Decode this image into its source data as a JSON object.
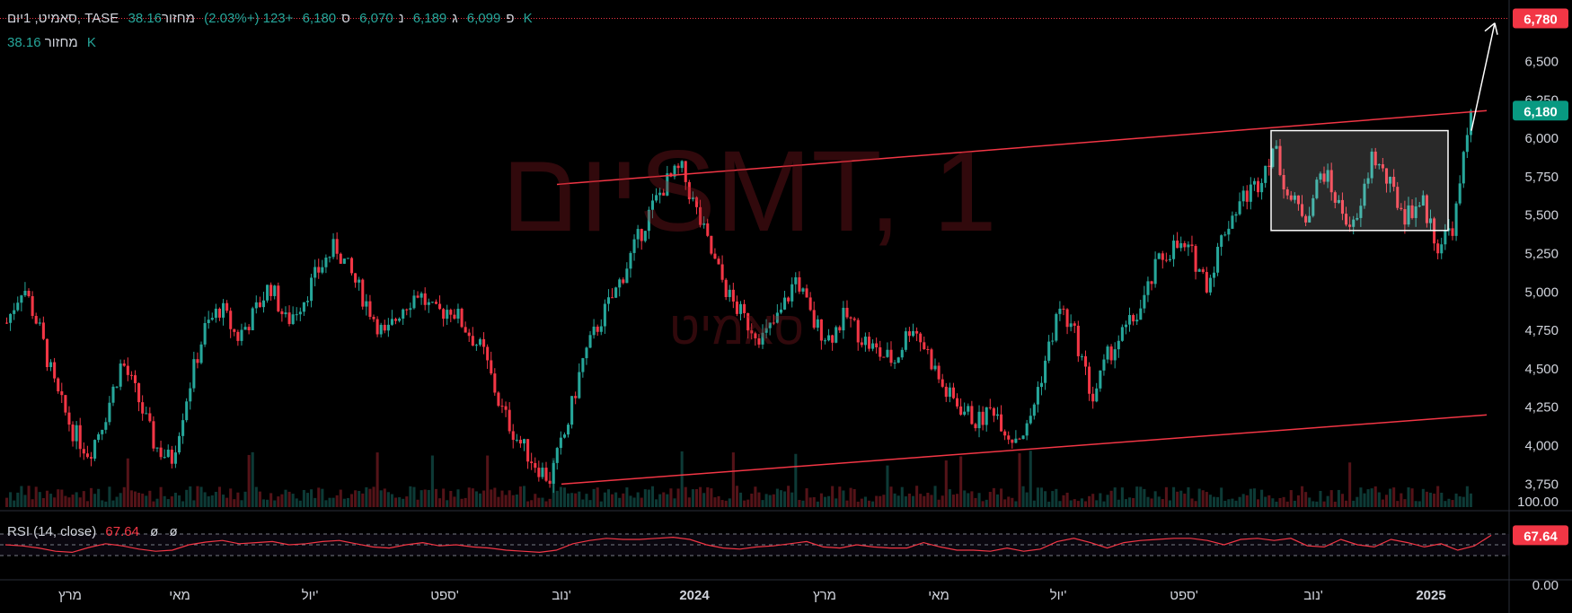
{
  "header": {
    "symbol_title": "סאמיט, 1יום, TASE",
    "ohlc": {
      "o_label": "פ",
      "o": "6,099",
      "h_label": "ג",
      "h": "6,189",
      "l_label": "נ",
      "l": "6,070",
      "c_label": "ס",
      "c": "6,180"
    },
    "change": "+123 (+2.03%)",
    "volume_label": "מחזור",
    "volume_value": "38.16 K"
  },
  "watermark": {
    "line1": "SMT, 1יום",
    "line2": "סאמיט"
  },
  "rsi": {
    "label": "RSI (14, close)",
    "value": "67.64",
    "extra1": "ø",
    "extra2": "ø",
    "axis_top": "100.00",
    "axis_bottom": "0.00",
    "badge": "67.64"
  },
  "colors": {
    "up": "#26a69a",
    "down": "#f23645",
    "line": "#f23645",
    "badge_current": "#089981",
    "badge_target": "#f23645",
    "rsi_line": "#f23645",
    "rsi_band": "#7e57c2"
  },
  "chart_data": {
    "type": "candlestick",
    "ylim": [
      3600,
      6900
    ],
    "y_ticks": [
      "6,500",
      "6,250",
      "6,000",
      "5,750",
      "5,500",
      "5,250",
      "5,000",
      "4,750",
      "4,500",
      "4,250",
      "4,000",
      "3,750"
    ],
    "y_tick_values": [
      6500,
      6250,
      6000,
      5750,
      5500,
      5250,
      5000,
      4750,
      4500,
      4250,
      4000,
      3750
    ],
    "x_ticks": [
      "מרץ",
      "מאי",
      "יול'",
      "ספט'",
      "נוב'",
      "2024",
      "מרץ",
      "מאי",
      "יול'",
      "ספט'",
      "נוב'",
      "2025"
    ],
    "current_price_badge": "6,180",
    "target_price_badge": "6,780",
    "target_price": 6780,
    "current_price": 6180,
    "upper_trendline": [
      [
        3750,
        5700
      ],
      [
        6200,
        6180
      ]
    ],
    "lower_trendline": [
      [
        3750,
        3750
      ],
      [
        6150,
        4200
      ]
    ],
    "consolidation_box": {
      "top": 6050,
      "bottom": 5400
    },
    "price_path": [
      4800,
      5050,
      4750,
      4350,
      4100,
      3950,
      4200,
      4550,
      4300,
      4000,
      3900,
      4350,
      4750,
      4900,
      4700,
      4850,
      5050,
      4800,
      4950,
      5150,
      5300,
      5100,
      4900,
      4700,
      4900,
      5000,
      4850,
      4900,
      4750,
      4600,
      4250,
      4050,
      3900,
      3780,
      4100,
      4550,
      4800,
      5000,
      5250,
      5500,
      5700,
      5800,
      5500,
      5200,
      4950,
      4800,
      4700,
      4850,
      5100,
      4800,
      4700,
      4850,
      4700,
      4600,
      4550,
      4800,
      4600,
      4350,
      4250,
      4150,
      4250,
      4050,
      4100,
      4500,
      4900,
      4700,
      4300,
      4600,
      4750,
      4900,
      5200,
      5300,
      5250,
      5050,
      5400,
      5600,
      5700,
      5950,
      5600,
      5500,
      5800,
      5550,
      5400,
      5900,
      5700,
      5500,
      5600,
      5300,
      5450,
      6180
    ],
    "rsi_values": [
      50,
      48,
      44,
      38,
      36,
      45,
      52,
      48,
      42,
      38,
      40,
      50,
      55,
      58,
      52,
      54,
      56,
      50,
      52,
      56,
      58,
      52,
      46,
      44,
      50,
      54,
      48,
      50,
      46,
      44,
      40,
      38,
      36,
      40,
      52,
      58,
      62,
      60,
      60,
      62,
      64,
      60,
      50,
      44,
      42,
      46,
      48,
      52,
      56,
      46,
      44,
      50,
      46,
      44,
      44,
      54,
      46,
      40,
      40,
      38,
      44,
      38,
      42,
      56,
      62,
      54,
      44,
      54,
      58,
      60,
      62,
      62,
      58,
      50,
      60,
      62,
      58,
      62,
      48,
      46,
      60,
      50,
      46,
      60,
      54,
      46,
      52,
      40,
      48,
      67.64
    ]
  }
}
